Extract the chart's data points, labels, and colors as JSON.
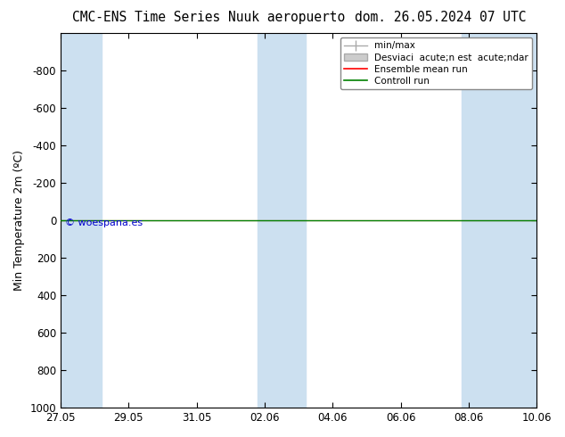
{
  "title_left": "CMC-ENS Time Series Nuuk aeropuerto",
  "title_right": "dom. 26.05.2024 07 UTC",
  "ylabel": "Min Temperature 2m (ºC)",
  "ylim_bottom": 1000,
  "ylim_top": -1000,
  "yticks": [
    -800,
    -600,
    -400,
    -200,
    0,
    200,
    400,
    600,
    800,
    1000
  ],
  "xtick_labels": [
    "27.05",
    "29.05",
    "31.05",
    "02.06",
    "04.06",
    "06.06",
    "08.06",
    "10.06"
  ],
  "xtick_positions": [
    0,
    2,
    4,
    6,
    8,
    10,
    12,
    14
  ],
  "shaded_ranges": [
    [
      0,
      1.2
    ],
    [
      5.8,
      7.2
    ],
    [
      11.8,
      14
    ]
  ],
  "control_run_color": "#008000",
  "ensemble_mean_color": "#ff0000",
  "watermark": "© woespana.es",
  "watermark_color": "#0000cc",
  "background_color": "#ffffff",
  "shaded_color": "#cce0f0",
  "legend_labels": [
    "min/max",
    "Desviaci  acute;n est  acute;ndar",
    "Ensemble mean run",
    "Controll run"
  ],
  "legend_colors": [
    "#aaaaaa",
    "#cccccc",
    "#ff0000",
    "#008000"
  ],
  "title_fontsize": 10.5,
  "axis_fontsize": 9,
  "tick_fontsize": 8.5,
  "legend_fontsize": 7.5
}
